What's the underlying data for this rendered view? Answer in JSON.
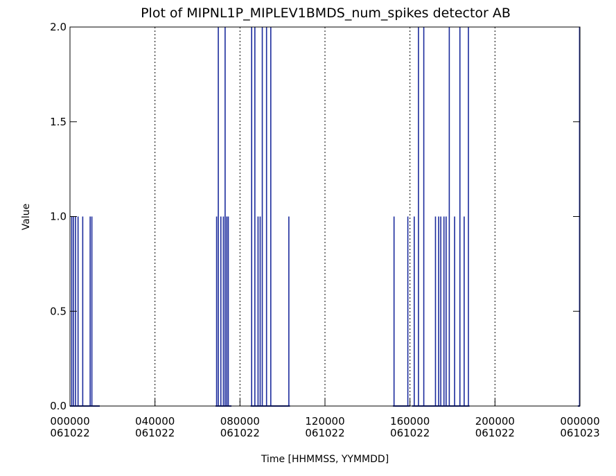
{
  "chart_data": {
    "type": "line",
    "title": "Plot of MIPNL1P_MIPLEV1BMDS_num_spikes detector AB",
    "xlabel": "Time [HHMMSS, YYMMDD]",
    "ylabel": "Value",
    "ylim": [
      0.0,
      2.0
    ],
    "xlim_hours": [
      0,
      24
    ],
    "y_ticks": [
      {
        "value": 0.0,
        "label": "0.0"
      },
      {
        "value": 0.5,
        "label": "0.5"
      },
      {
        "value": 1.0,
        "label": "1.0"
      },
      {
        "value": 1.5,
        "label": "1.5"
      },
      {
        "value": 2.0,
        "label": "2.0"
      }
    ],
    "x_ticks": [
      {
        "hour": 0,
        "time": "000000",
        "date": "061022"
      },
      {
        "hour": 4,
        "time": "040000",
        "date": "061022"
      },
      {
        "hour": 8,
        "time": "080000",
        "date": "061022"
      },
      {
        "hour": 12,
        "time": "120000",
        "date": "061022"
      },
      {
        "hour": 16,
        "time": "160000",
        "date": "061022"
      },
      {
        "hour": 20,
        "time": "200000",
        "date": "061022"
      },
      {
        "hour": 24,
        "time": "000000",
        "date": "061023"
      }
    ],
    "grid": "vertical dotted lines at x tick positions",
    "color": "#1a2a9c",
    "spikes": [
      {
        "hour": 0.08,
        "value": 1
      },
      {
        "hour": 0.16,
        "value": 1
      },
      {
        "hour": 0.26,
        "value": 1
      },
      {
        "hour": 0.38,
        "value": 1
      },
      {
        "hour": 0.6,
        "value": 1
      },
      {
        "hour": 0.95,
        "value": 1
      },
      {
        "hour": 1.03,
        "value": 1
      },
      {
        "hour": 6.9,
        "value": 1
      },
      {
        "hour": 6.98,
        "value": 2
      },
      {
        "hour": 7.1,
        "value": 1
      },
      {
        "hour": 7.22,
        "value": 1
      },
      {
        "hour": 7.3,
        "value": 2
      },
      {
        "hour": 7.38,
        "value": 1
      },
      {
        "hour": 7.45,
        "value": 1
      },
      {
        "hour": 8.55,
        "value": 2
      },
      {
        "hour": 8.7,
        "value": 2
      },
      {
        "hour": 8.85,
        "value": 1
      },
      {
        "hour": 8.95,
        "value": 1
      },
      {
        "hour": 9.05,
        "value": 2
      },
      {
        "hour": 9.25,
        "value": 2
      },
      {
        "hour": 9.45,
        "value": 2
      },
      {
        "hour": 10.3,
        "value": 1
      },
      {
        "hour": 15.25,
        "value": 1
      },
      {
        "hour": 15.9,
        "value": 1
      },
      {
        "hour": 16.2,
        "value": 1
      },
      {
        "hour": 16.4,
        "value": 2
      },
      {
        "hour": 16.65,
        "value": 2
      },
      {
        "hour": 17.2,
        "value": 1
      },
      {
        "hour": 17.35,
        "value": 1
      },
      {
        "hour": 17.45,
        "value": 1
      },
      {
        "hour": 17.6,
        "value": 1
      },
      {
        "hour": 17.7,
        "value": 1
      },
      {
        "hour": 17.85,
        "value": 2
      },
      {
        "hour": 18.1,
        "value": 1
      },
      {
        "hour": 18.35,
        "value": 2
      },
      {
        "hour": 18.55,
        "value": 1
      },
      {
        "hour": 18.75,
        "value": 2
      },
      {
        "hour": 23.98,
        "value": 2
      }
    ],
    "zero_segments": [
      [
        0.0,
        1.4
      ],
      [
        6.85,
        7.6
      ],
      [
        8.5,
        10.35
      ],
      [
        15.2,
        16.0
      ],
      [
        16.1,
        18.8
      ],
      [
        23.9,
        24.0
      ]
    ]
  }
}
